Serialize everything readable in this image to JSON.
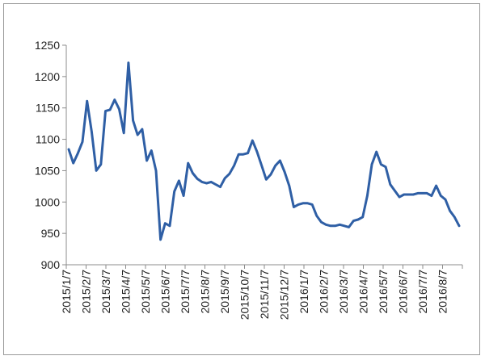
{
  "chart_data": {
    "type": "line",
    "title": "",
    "xlabel": "",
    "ylabel": "",
    "ylim": [
      900,
      1250
    ],
    "yticks": [
      900,
      950,
      1000,
      1050,
      1100,
      1150,
      1200,
      1250
    ],
    "grid": false,
    "legend": "none",
    "line_color": "#2f5fa5",
    "x_tick_labels": [
      "2015/1/7",
      "2015/2/7",
      "2015/3/7",
      "2015/4/7",
      "2015/5/7",
      "2015/6/7",
      "2015/7/7",
      "2015/8/7",
      "2015/9/7",
      "2015/10/7",
      "2015/11/7",
      "2015/12/7",
      "2016/1/7",
      "2016/2/7",
      "2016/3/7",
      "2016/4/7",
      "2016/5/7",
      "2016/6/7",
      "2016/7/7",
      "2016/8/7"
    ],
    "series": [
      {
        "values": [
          1084,
          1062,
          1078,
          1096,
          1161,
          1112,
          1050,
          1060,
          1145,
          1147,
          1163,
          1148,
          1110,
          1222,
          1130,
          1107,
          1116,
          1066,
          1082,
          1050,
          940,
          966,
          962,
          1017,
          1034,
          1010,
          1062,
          1046,
          1037,
          1032,
          1030,
          1032,
          1028,
          1024,
          1038,
          1045,
          1058,
          1076,
          1076,
          1078,
          1098,
          1080,
          1058,
          1036,
          1044,
          1058,
          1066,
          1048,
          1026,
          992,
          996,
          998,
          998,
          996,
          978,
          968,
          964,
          962,
          962,
          964,
          962,
          960,
          970,
          972,
          976,
          1010,
          1060,
          1080,
          1060,
          1056,
          1028,
          1018,
          1008,
          1012,
          1012,
          1012,
          1014,
          1014,
          1014,
          1010,
          1026,
          1010,
          1004,
          986,
          976,
          962
        ]
      }
    ]
  }
}
